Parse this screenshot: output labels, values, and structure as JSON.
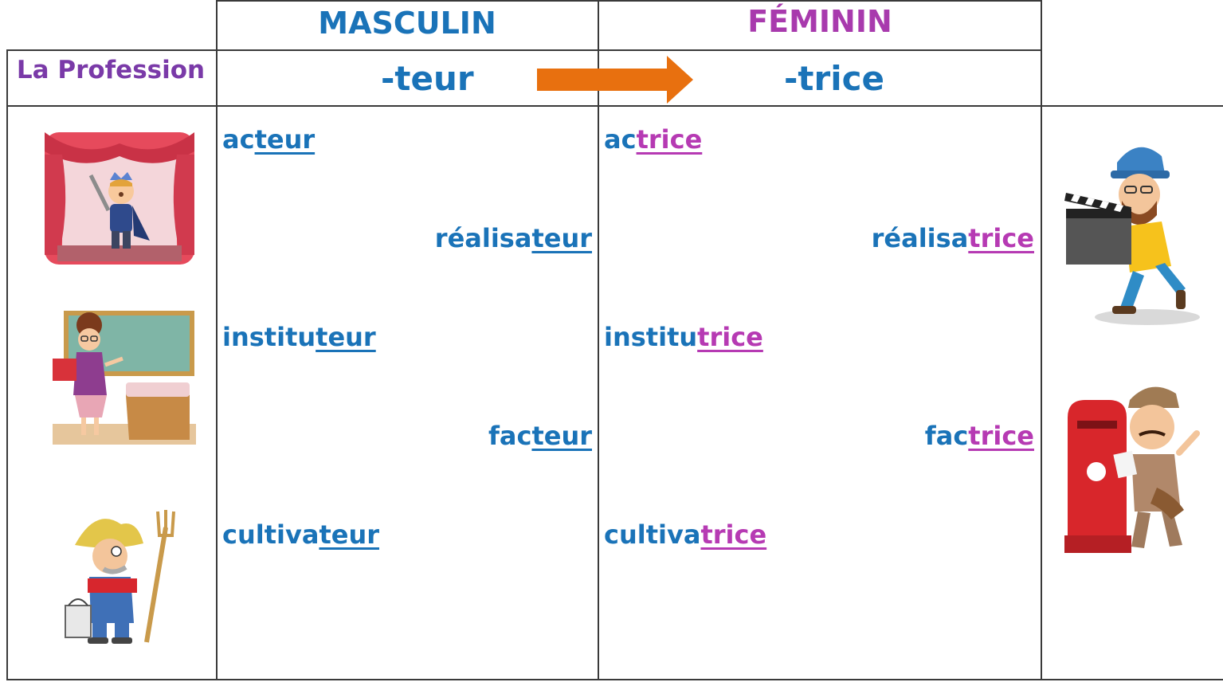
{
  "header": {
    "masculine": "MASCULIN",
    "feminine": "FÉMININ",
    "profession_label": "La Profession",
    "masc_suffix": "-teur",
    "fem_suffix": "-trice"
  },
  "words": [
    {
      "m_stem": "ac",
      "m_suf": "teur",
      "f_stem": "ac",
      "f_suf": "trice"
    },
    {
      "m_stem": "réalisa",
      "m_suf": "teur",
      "f_stem": "réalisa",
      "f_suf": "trice"
    },
    {
      "m_stem": "institu",
      "m_suf": "teur",
      "f_stem": "institu",
      "f_suf": "trice"
    },
    {
      "m_stem": "fac",
      "m_suf": "teur",
      "f_stem": "fac",
      "f_suf": "trice"
    },
    {
      "m_stem": "cultiva",
      "m_suf": "teur",
      "f_stem": "cultiva",
      "f_suf": "trice"
    }
  ],
  "colors": {
    "masculine": "#1a73b8",
    "feminine": "#a83aad",
    "arrow": "#e8700f"
  },
  "icons": [
    "theater-actor-icon",
    "film-director-icon",
    "teacher-icon",
    "mail-carrier-icon",
    "farmer-icon",
    "right-arrow-icon"
  ]
}
